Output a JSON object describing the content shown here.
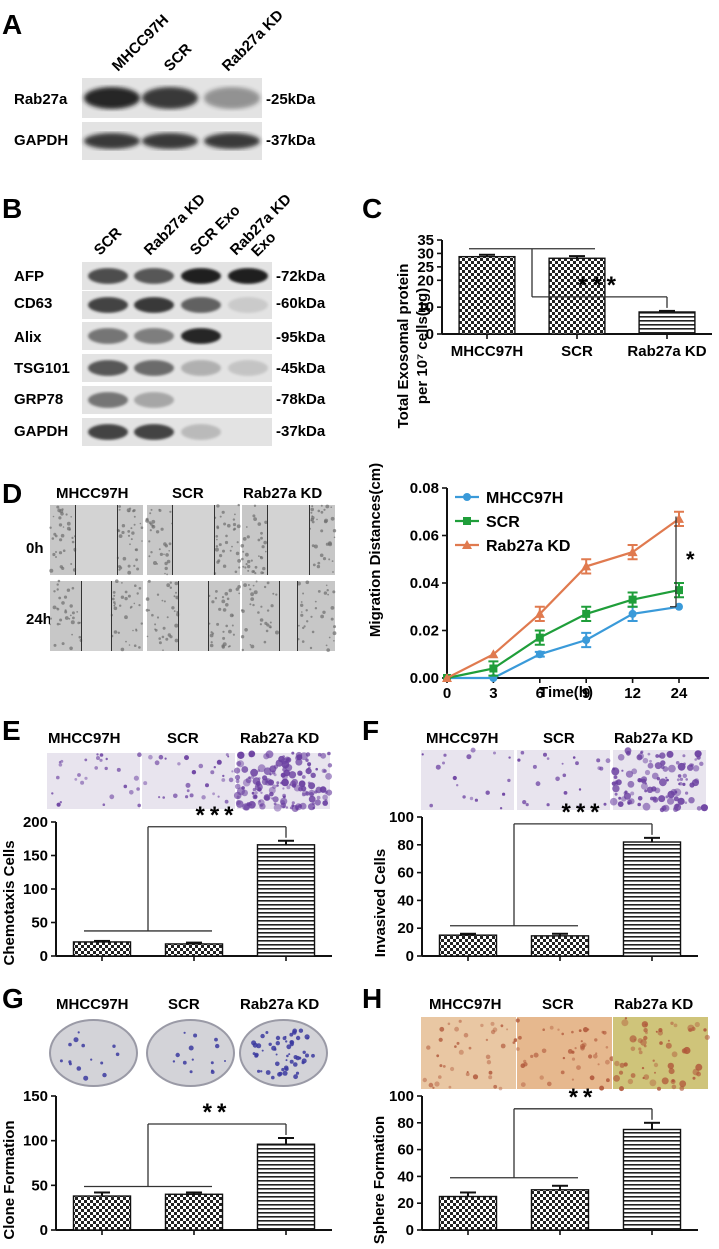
{
  "panelA": {
    "letter": "A",
    "lanes": [
      "MHCC97H",
      "SCR",
      "Rab27a KD"
    ],
    "rows": [
      {
        "name": "Rab27a",
        "kda": "25kDa",
        "intensity": [
          0.95,
          0.85,
          0.4
        ]
      },
      {
        "name": "GAPDH",
        "kda": "37kDa",
        "intensity": [
          0.85,
          0.85,
          0.85
        ]
      }
    ]
  },
  "panelB": {
    "letter": "B",
    "lanes": [
      "SCR",
      "Rab27a KD",
      "SCR Exo",
      "Rab27a KD Exo"
    ],
    "rows": [
      {
        "name": "AFP",
        "kda": "72kDa",
        "intensity": [
          0.75,
          0.7,
          0.98,
          0.98
        ]
      },
      {
        "name": "CD63",
        "kda": "60kDa",
        "intensity": [
          0.8,
          0.85,
          0.65,
          0.12
        ]
      },
      {
        "name": "Alix",
        "kda": "95kDa",
        "intensity": [
          0.55,
          0.5,
          0.95,
          0.0
        ]
      },
      {
        "name": "TSG101",
        "kda": "45kDa",
        "intensity": [
          0.7,
          0.6,
          0.25,
          0.15
        ]
      },
      {
        "name": "GRP78",
        "kda": "78kDa",
        "intensity": [
          0.55,
          0.3,
          0.0,
          0.0
        ]
      },
      {
        "name": "GAPDH",
        "kda": "37kDa",
        "intensity": [
          0.8,
          0.8,
          0.2,
          0.0
        ]
      }
    ]
  },
  "panelD": {
    "letter": "D",
    "cols": [
      "MHCC97H",
      "SCR",
      "Rab27a KD"
    ],
    "rows": [
      "0h",
      "24h"
    ]
  },
  "panelE": {
    "letter": "E",
    "cols": [
      "MHCC97H",
      "SCR",
      "Rab27a KD"
    ]
  },
  "panelF": {
    "letter": "F",
    "cols": [
      "MHCC97H",
      "SCR",
      "Rab27a KD"
    ]
  },
  "panelG": {
    "letter": "G",
    "cols": [
      "MHCC97H",
      "SCR",
      "Rab27a KD"
    ]
  },
  "panelH": {
    "letter": "H",
    "cols": [
      "MHCC97H",
      "SCR",
      "Rab27a KD"
    ]
  },
  "chart_data": [
    {
      "id": "C",
      "type": "bar",
      "categories": [
        "MHCC97H",
        "SCR",
        "Rab27a KD"
      ],
      "values": [
        28.8,
        28.2,
        8.2
      ],
      "errors": [
        0.7,
        0.8,
        0.4
      ],
      "patterns": [
        "check",
        "check",
        "hlines"
      ],
      "ylabel_line1": "Total Exosomal protein",
      "ylabel_line2": "per 10⁷ cells(μg)",
      "ylim": [
        0,
        35
      ],
      "yticks": [
        0,
        10,
        20,
        25,
        30,
        35
      ],
      "significance": "***",
      "show_xlabels": true
    },
    {
      "id": "D",
      "type": "line",
      "x": [
        "0",
        "3",
        "6",
        "9",
        "12",
        "24"
      ],
      "xlabel": "Time(h)",
      "ylabel": "Migration Distances(cm)",
      "ylim": [
        0,
        0.08
      ],
      "yticks": [
        "0.00",
        "0.02",
        "0.04",
        "0.06",
        "0.08"
      ],
      "series": [
        {
          "name": "MHCC97H",
          "color": "#3a9ad9",
          "marker": "circle",
          "values": [
            0,
            0,
            0.01,
            0.016,
            0.027,
            0.03
          ],
          "errors": [
            0,
            0,
            0.001,
            0.003,
            0.003,
            0
          ]
        },
        {
          "name": "SCR",
          "color": "#1f9e3a",
          "marker": "square",
          "values": [
            0,
            0.004,
            0.017,
            0.027,
            0.033,
            0.037
          ],
          "errors": [
            0,
            0.003,
            0.003,
            0.003,
            0.003,
            0.003
          ]
        },
        {
          "name": "Rab27a KD",
          "color": "#e07a4f",
          "marker": "triangle",
          "values": [
            0,
            0.01,
            0.027,
            0.047,
            0.053,
            0.067
          ],
          "errors": [
            0,
            0,
            0.003,
            0.003,
            0.003,
            0.003
          ]
        }
      ],
      "significance": "*",
      "legend": "top-left"
    },
    {
      "id": "E",
      "type": "bar",
      "categories": [
        "MHCC97H",
        "SCR",
        "Rab27a KD"
      ],
      "values": [
        21,
        18,
        166
      ],
      "errors": [
        1.5,
        2,
        6
      ],
      "patterns": [
        "check",
        "check",
        "hlines"
      ],
      "ylabel": "Chemotaxis Cells",
      "ylim": [
        0,
        200
      ],
      "yticks": [
        0,
        50,
        100,
        150,
        200
      ],
      "significance": "***",
      "show_xlabels": false
    },
    {
      "id": "F",
      "type": "bar",
      "categories": [
        "MHCC97H",
        "SCR",
        "Rab27a KD"
      ],
      "values": [
        15,
        14.5,
        82
      ],
      "errors": [
        1,
        1.5,
        3
      ],
      "patterns": [
        "check",
        "check",
        "hlines"
      ],
      "ylabel": "Invasived Cells",
      "ylim": [
        0,
        100
      ],
      "yticks": [
        0,
        20,
        40,
        60,
        80,
        100
      ],
      "significance": "***",
      "show_xlabels": false
    },
    {
      "id": "G",
      "type": "bar",
      "categories": [
        "MHCC97H",
        "SCR",
        "Rab27a KD"
      ],
      "values": [
        38,
        40,
        96
      ],
      "errors": [
        4,
        2,
        7
      ],
      "patterns": [
        "check",
        "check",
        "hlines"
      ],
      "ylabel": "Clone Formation",
      "ylim": [
        0,
        150
      ],
      "yticks": [
        0,
        50,
        100,
        150
      ],
      "significance": "**",
      "show_xlabels": false
    },
    {
      "id": "H",
      "type": "bar",
      "categories": [
        "MHCC97H",
        "SCR",
        "Rab27a KD"
      ],
      "values": [
        25,
        30,
        75
      ],
      "errors": [
        3,
        3,
        5
      ],
      "patterns": [
        "check",
        "check",
        "hlines"
      ],
      "ylabel": "Sphere Formation",
      "ylim": [
        0,
        100
      ],
      "yticks": [
        0,
        20,
        40,
        60,
        80,
        100
      ],
      "significance": "**",
      "show_xlabels": false
    }
  ],
  "colors": {
    "axis": "#111111",
    "blot_bg": "#e3e3e3",
    "band": "#1a1a1a",
    "scratch_bg": "#c7c7c7",
    "transwell_bg": "#e8e4ee",
    "transwell_cell": "#6a3fa0",
    "dish_bg": "#d3d3d8",
    "dish_colony": "#3b3aa0",
    "sphere_bg_1": "#e9c7a3",
    "sphere_bg_2": "#e6b88e",
    "sphere_bg_3": "#cfc47a"
  }
}
